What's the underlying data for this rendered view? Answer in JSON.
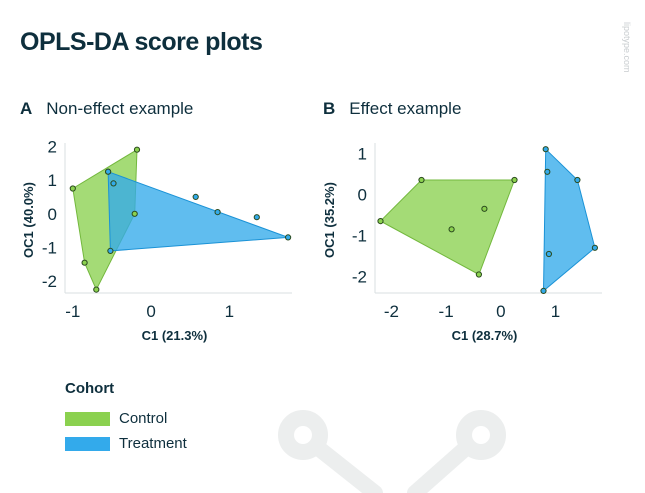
{
  "title": "OPLS-DA score plots",
  "watermark": "lipotype.com",
  "colors": {
    "control_fill": "#8bd14f",
    "control_stroke": "#73b83d",
    "treatment_fill": "#33aaeb",
    "treatment_stroke": "#1a92d6",
    "point_stroke": "#2a4a1e",
    "text": "#0e2f3d"
  },
  "panels": [
    {
      "letter": "A",
      "name": "Non-effect example"
    },
    {
      "letter": "B",
      "name": "Effect example"
    }
  ],
  "legend": {
    "title": "Cohort",
    "items": [
      {
        "label": "Control",
        "color": "#8bd14f"
      },
      {
        "label": "Treatment",
        "color": "#33aaeb"
      }
    ]
  },
  "chart_data": [
    {
      "type": "scatter",
      "title": "Non-effect example",
      "xlabel": "C1 (21.3%)",
      "ylabel": "OC1 (40.0%)",
      "xlim": [
        -1.1,
        1.8
      ],
      "ylim": [
        -2.35,
        2.1
      ],
      "xticks": [
        -1,
        0,
        1
      ],
      "yticks": [
        -2,
        -1,
        0,
        1,
        2
      ],
      "series": [
        {
          "name": "Control",
          "points": [
            [
              -0.18,
              1.9
            ],
            [
              -1.0,
              0.75
            ],
            [
              -0.21,
              0.0
            ],
            [
              -0.85,
              -1.45
            ],
            [
              -0.7,
              -2.25
            ],
            [
              -0.55,
              1.25
            ]
          ],
          "hull": [
            [
              -0.18,
              1.9
            ],
            [
              -1.0,
              0.75
            ],
            [
              -0.85,
              -1.45
            ],
            [
              -0.7,
              -2.25
            ],
            [
              -0.21,
              0.0
            ]
          ]
        },
        {
          "name": "Treatment",
          "points": [
            [
              -0.55,
              1.25
            ],
            [
              -0.48,
              0.9
            ],
            [
              -0.52,
              -1.1
            ],
            [
              0.57,
              0.5
            ],
            [
              0.85,
              0.05
            ],
            [
              1.35,
              -0.1
            ],
            [
              1.75,
              -0.7
            ]
          ],
          "hull": [
            [
              -0.55,
              1.25
            ],
            [
              1.75,
              -0.7
            ],
            [
              -0.52,
              -1.1
            ]
          ]
        }
      ]
    },
    {
      "type": "scatter",
      "title": "Effect example",
      "xlabel": "C1 (28.7%)",
      "ylabel": "OC1 (35.2%)",
      "xlim": [
        -2.3,
        1.85
      ],
      "ylim": [
        -2.4,
        1.25
      ],
      "xticks": [
        -2,
        -1,
        0,
        1
      ],
      "yticks": [
        -2,
        -1,
        0,
        1
      ],
      "series": [
        {
          "name": "Control",
          "points": [
            [
              -1.45,
              0.35
            ],
            [
              0.25,
              0.35
            ],
            [
              -2.2,
              -0.65
            ],
            [
              -0.3,
              -0.35
            ],
            [
              -0.9,
              -0.85
            ],
            [
              -0.4,
              -1.95
            ]
          ],
          "hull": [
            [
              -1.45,
              0.35
            ],
            [
              0.25,
              0.35
            ],
            [
              -0.4,
              -1.95
            ],
            [
              -2.2,
              -0.65
            ]
          ]
        },
        {
          "name": "Treatment",
          "points": [
            [
              0.82,
              1.1
            ],
            [
              0.85,
              0.55
            ],
            [
              1.4,
              0.35
            ],
            [
              1.72,
              -1.3
            ],
            [
              0.88,
              -1.45
            ],
            [
              0.78,
              -2.35
            ]
          ],
          "hull": [
            [
              0.82,
              1.1
            ],
            [
              1.4,
              0.35
            ],
            [
              1.72,
              -1.3
            ],
            [
              0.78,
              -2.35
            ]
          ]
        }
      ]
    }
  ]
}
